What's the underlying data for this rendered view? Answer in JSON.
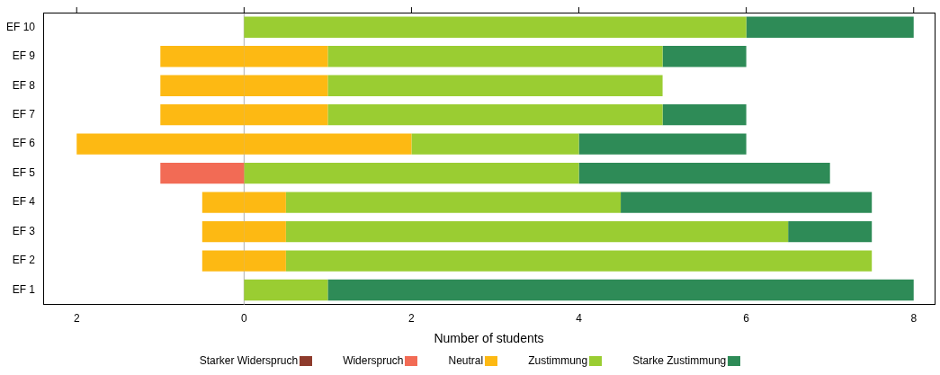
{
  "chart_data": {
    "type": "bar",
    "orientation": "horizontal",
    "stacked": true,
    "xlabel": "Number of students",
    "categories": [
      "EF 10",
      "EF 9",
      "EF 8",
      "EF 7",
      "EF 6",
      "EF 5",
      "EF 4",
      "EF 3",
      "EF 2",
      "EF 1"
    ],
    "series": [
      {
        "name": "Starker Widerspruch",
        "color": "#8e3b2c",
        "values": [
          0,
          0,
          0,
          0,
          0,
          0,
          0,
          0,
          0,
          0
        ]
      },
      {
        "name": "Widerspruch",
        "color": "#f26b55",
        "values": [
          0,
          0,
          0,
          0,
          0,
          -1,
          0,
          0,
          0,
          0
        ]
      },
      {
        "name": "Neutral",
        "color": "#fdb913",
        "values": [
          0,
          1,
          1,
          1,
          2,
          0,
          0.5,
          0.5,
          0.5,
          0
        ]
      },
      {
        "name": "Zustimmung",
        "color": "#9acd32",
        "values": [
          6,
          4,
          4,
          4,
          2,
          4,
          4,
          6,
          7,
          1
        ]
      },
      {
        "name": "Starke Zustimmung",
        "color": "#2e8b57",
        "values": [
          2,
          1,
          0,
          1,
          2,
          3,
          3,
          1,
          0,
          7
        ]
      },
      {
        "color": "#fdb913",
        "values": [
          0,
          -1,
          -1,
          -1,
          -2,
          0,
          -0.5,
          -0.5,
          -0.5,
          0
        ]
      }
    ],
    "xlim": [
      -2.4,
      8.25
    ],
    "xticks": [
      {
        "value": -2,
        "label": "2"
      },
      0,
      2,
      4,
      6,
      8
    ],
    "ref_lines": [
      {
        "axis": "x",
        "value": 0,
        "color": "#b0b0b0"
      }
    ],
    "legend": "bottom",
    "grid": false
  }
}
